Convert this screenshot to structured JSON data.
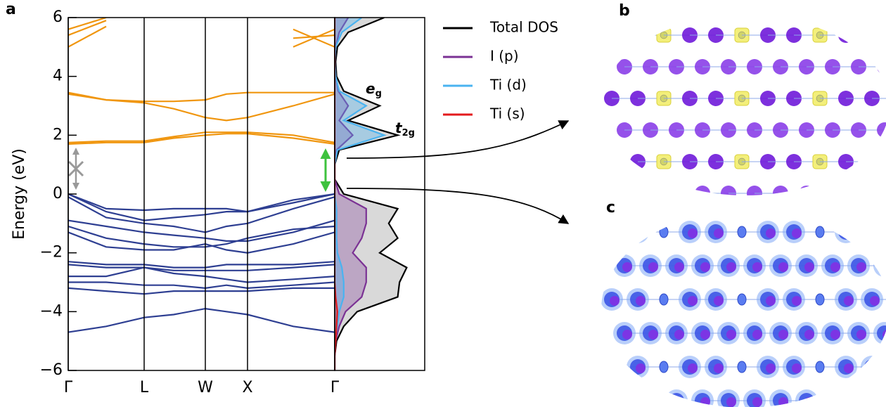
{
  "panels": [
    "a",
    "b",
    "c"
  ],
  "chart_data": [
    {
      "type": "line",
      "ylabel": "Energy (eV)",
      "x": [
        0,
        0.54,
        1.08,
        1.5,
        1.95,
        2.25,
        2.55,
        3.2,
        3.79
      ],
      "xlim": [
        0,
        3.79
      ],
      "xticks": [
        {
          "value": 0,
          "label": "Γ"
        },
        {
          "value": 1.08,
          "label": "L"
        },
        {
          "value": 1.95,
          "label": "W"
        },
        {
          "value": 2.55,
          "label": "X"
        },
        {
          "value": 3.79,
          "label": "Γ"
        }
      ],
      "ylim": [
        -6,
        6
      ],
      "yticks": [
        {
          "value": -6,
          "label": "−6"
        },
        {
          "value": -4,
          "label": "−4"
        },
        {
          "value": -2,
          "label": "−2"
        },
        0,
        2,
        4,
        6
      ],
      "series": [
        {
          "color": "#2e3f92",
          "values": [
            0,
            -0.5,
            -0.55,
            -0.5,
            -0.5,
            -0.5,
            -0.6,
            -0.3,
            0
          ]
        },
        {
          "color": "#2e3f92",
          "values": [
            0,
            -0.6,
            -0.9,
            -0.8,
            -0.7,
            -0.6,
            -0.6,
            -0.2,
            0
          ]
        },
        {
          "color": "#2e3f92",
          "values": [
            -0.1,
            -0.8,
            -1.0,
            -1.1,
            -1.3,
            -1.1,
            -1.0,
            -0.5,
            -0.1
          ]
        },
        {
          "color": "#2e3f92",
          "values": [
            -0.9,
            -1.1,
            -1.3,
            -1.4,
            -1.5,
            -1.6,
            -1.6,
            -1.3,
            -0.9
          ]
        },
        {
          "color": "#2e3f92",
          "values": [
            -1.1,
            -1.5,
            -1.7,
            -1.8,
            -1.8,
            -1.7,
            -1.5,
            -1.2,
            -1.1
          ]
        },
        {
          "color": "#2e3f92",
          "values": [
            -1.3,
            -1.8,
            -1.9,
            -1.9,
            -1.7,
            -1.9,
            -2.0,
            -1.7,
            -1.3
          ]
        },
        {
          "color": "#2e3f92",
          "values": [
            -2.3,
            -2.4,
            -2.4,
            -2.5,
            -2.5,
            -2.4,
            -2.4,
            -2.4,
            -2.3
          ]
        },
        {
          "color": "#2e3f92",
          "values": [
            -2.4,
            -2.5,
            -2.5,
            -2.6,
            -2.6,
            -2.6,
            -2.6,
            -2.5,
            -2.4
          ]
        },
        {
          "color": "#2e3f92",
          "values": [
            -2.8,
            -2.8,
            -2.5,
            -2.7,
            -2.8,
            -2.9,
            -3.0,
            -2.9,
            -2.8
          ]
        },
        {
          "color": "#2e3f92",
          "values": [
            -3.0,
            -3.0,
            -3.1,
            -3.1,
            -3.2,
            -3.1,
            -3.2,
            -3.1,
            -3.0
          ]
        },
        {
          "color": "#2e3f92",
          "values": [
            -3.2,
            -3.3,
            -3.4,
            -3.3,
            -3.3,
            -3.3,
            -3.3,
            -3.2,
            -3.2
          ]
        },
        {
          "color": "#2e3f92",
          "values": [
            -4.7,
            -4.5,
            -4.2,
            -4.1,
            -3.9,
            -4.0,
            -4.1,
            -4.5,
            -4.7
          ]
        },
        {
          "color": "#f0960f",
          "values": [
            1.7,
            1.75,
            1.75,
            1.9,
            2.0,
            2.05,
            2.05,
            1.9,
            1.7
          ]
        },
        {
          "color": "#f0960f",
          "values": [
            1.75,
            1.8,
            1.8,
            1.95,
            2.1,
            2.1,
            2.1,
            2.0,
            1.75
          ]
        },
        {
          "color": "#f0960f",
          "values": [
            3.4,
            3.2,
            3.1,
            2.9,
            2.6,
            2.5,
            2.6,
            3.0,
            3.4
          ]
        },
        {
          "color": "#f0960f",
          "values": [
            3.45,
            3.2,
            3.15,
            3.15,
            3.2,
            3.4,
            3.45,
            3.45,
            3.45
          ]
        },
        {
          "color": "#f0960f",
          "values": [
            5.0,
            5.7,
            null,
            null,
            null,
            null,
            null,
            5.6,
            5.0
          ]
        },
        {
          "color": "#f0960f",
          "values": [
            5.4,
            5.9,
            null,
            null,
            null,
            null,
            null,
            5.3,
            5.4
          ]
        },
        {
          "color": "#f0960f",
          "values": [
            5.6,
            6.0,
            null,
            null,
            null,
            null,
            null,
            5.0,
            5.6
          ]
        }
      ]
    },
    {
      "type": "area",
      "y": [
        -6,
        -5.5,
        -5,
        -4.5,
        -4,
        -3.5,
        -3,
        -2.5,
        -2,
        -1.5,
        -1,
        -0.5,
        0,
        0.5,
        1,
        1.5,
        2,
        2.5,
        3,
        3.5,
        4,
        4.5,
        5,
        5.5,
        6
      ],
      "ylim": [
        -6,
        6
      ],
      "xlim": [
        0,
        1
      ],
      "series": [
        {
          "name": "Total DOS",
          "color": "#000000",
          "values": [
            0,
            0,
            0.02,
            0.1,
            0.25,
            0.7,
            0.72,
            0.8,
            0.5,
            0.7,
            0.6,
            0.7,
            0.1,
            0,
            0,
            0.05,
            0.7,
            0.15,
            0.5,
            0.1,
            0.02,
            0.01,
            0.03,
            0.15,
            0.55
          ]
        },
        {
          "name": "I (p)",
          "color": "#7b3294",
          "values": [
            0,
            0,
            0.01,
            0.05,
            0.12,
            0.3,
            0.35,
            0.35,
            0.2,
            0.3,
            0.35,
            0.35,
            0.05,
            0,
            0,
            0.02,
            0.2,
            0.05,
            0.15,
            0.04,
            0.01,
            0,
            0.01,
            0.05,
            0.15
          ]
        },
        {
          "name": "Ti (d)",
          "color": "#4ab3f0",
          "values": [
            0,
            0,
            0,
            0.03,
            0.05,
            0.1,
            0.1,
            0.08,
            0.03,
            0.02,
            0.02,
            0.02,
            0,
            0,
            0,
            0.03,
            0.55,
            0.1,
            0.35,
            0.05,
            0.01,
            0,
            0.01,
            0.08,
            0.3
          ]
        },
        {
          "name": "Ti (s)",
          "color": "#e31a1c",
          "values": [
            0,
            0,
            0.01,
            0.02,
            0.03,
            0.01,
            0,
            0,
            0,
            0,
            0,
            0,
            0,
            0,
            0,
            0,
            0,
            0,
            0,
            0,
            0,
            0,
            0,
            0,
            0
          ]
        }
      ],
      "legend": "outside-right",
      "annotations": [
        {
          "text": "e",
          "subscript": "g"
        },
        {
          "text": "t",
          "subscript": "2g"
        }
      ]
    }
  ]
}
